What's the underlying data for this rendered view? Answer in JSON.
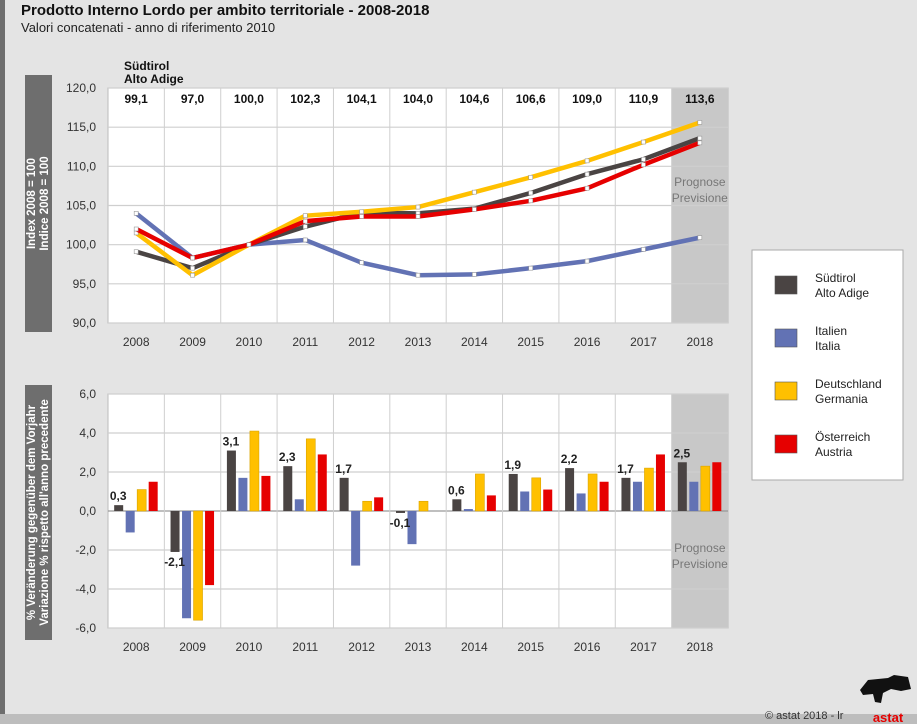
{
  "title": "Prodotto Interno Lordo per ambito territoriale - 2008-2018",
  "subtitle": "Valori concatenati - anno di riferimento 2010",
  "footer": {
    "copyright": "© astat 2018 - lr",
    "logo_text": "astat"
  },
  "colors": {
    "Südtirol": "#4a4443",
    "Italien": "#6272b4",
    "Deutschland": "#ffc000",
    "Österreich": "#e60000",
    "forecast_shade": "#c8c8c8"
  },
  "chart_data": [
    {
      "type": "line",
      "ylabel": [
        "Index 2008 = 100",
        "Indice 2008 = 100"
      ],
      "ylim": [
        90,
        120
      ],
      "yticks": [
        "90,0",
        "95,0",
        "100,0",
        "105,0",
        "110,0",
        "115,0",
        "120,0"
      ],
      "categories": [
        "2008",
        "2009",
        "2010",
        "2011",
        "2012",
        "2013",
        "2014",
        "2015",
        "2016",
        "2017",
        "2018"
      ],
      "table_header": [
        "Südtirol",
        "Alto Adige"
      ],
      "table_values": [
        "99,1",
        "97,0",
        "100,0",
        "102,3",
        "104,1",
        "104,0",
        "104,6",
        "106,6",
        "109,0",
        "110,9",
        "113,6"
      ],
      "forecast_label": [
        "Prognose",
        "Previsione"
      ],
      "series": [
        {
          "name": "Südtirol / Alto Adige",
          "key": "Südtirol",
          "values": [
            99.1,
            97.0,
            100.0,
            102.3,
            104.1,
            104.0,
            104.6,
            106.6,
            109.0,
            110.9,
            113.6
          ]
        },
        {
          "name": "Italien / Italia",
          "key": "Italien",
          "values": [
            104.0,
            98.3,
            100.0,
            100.6,
            97.7,
            96.1,
            96.2,
            97.0,
            97.9,
            99.4,
            100.9
          ]
        },
        {
          "name": "Deutschland / Germania",
          "key": "Deutschland",
          "values": [
            101.5,
            96.1,
            100.0,
            103.7,
            104.2,
            104.8,
            106.7,
            108.6,
            110.7,
            113.1,
            115.6
          ]
        },
        {
          "name": "Österreich / Austria",
          "key": "Österreich",
          "values": [
            102.0,
            98.3,
            100.0,
            103.0,
            103.6,
            103.6,
            104.5,
            105.6,
            107.2,
            110.2,
            113.0
          ]
        }
      ]
    },
    {
      "type": "bar",
      "ylabel": [
        "% Veränderung gegenüber dem Vorjahr",
        "Variazione % rispetto all'anno precedente"
      ],
      "ylim": [
        -6,
        6
      ],
      "yticks": [
        "-6,0",
        "-4,0",
        "-2,0",
        "0,0",
        "2,0",
        "4,0",
        "6,0"
      ],
      "categories": [
        "2008",
        "2009",
        "2010",
        "2011",
        "2012",
        "2013",
        "2014",
        "2015",
        "2016",
        "2017",
        "2018"
      ],
      "data_labels": [
        "0,3",
        "-2,1",
        "3,1",
        "2,3",
        "1,7",
        "-0,1",
        "0,6",
        "1,9",
        "2,2",
        "1,7",
        "2,5"
      ],
      "forecast_label": [
        "Prognose",
        "Previsione"
      ],
      "series": [
        {
          "name": "Südtirol / Alto Adige",
          "key": "Südtirol",
          "values": [
            0.3,
            -2.1,
            3.1,
            2.3,
            1.7,
            -0.1,
            0.6,
            1.9,
            2.2,
            1.7,
            2.5
          ]
        },
        {
          "name": "Italien / Italia",
          "key": "Italien",
          "values": [
            -1.1,
            -5.5,
            1.7,
            0.6,
            -2.8,
            -1.7,
            0.1,
            1.0,
            0.9,
            1.5,
            1.5
          ]
        },
        {
          "name": "Deutschland / Germania",
          "key": "Deutschland",
          "values": [
            1.1,
            -5.6,
            4.1,
            3.7,
            0.5,
            0.5,
            1.9,
            1.7,
            1.9,
            2.2,
            2.3
          ]
        },
        {
          "name": "Österreich / Austria",
          "key": "Österreich",
          "values": [
            1.5,
            -3.8,
            1.8,
            2.9,
            0.7,
            0.0,
            0.8,
            1.1,
            1.5,
            2.9,
            2.5
          ]
        }
      ]
    }
  ],
  "legend": [
    {
      "key": "Südtirol",
      "line1": "Südtirol",
      "line2": "Alto Adige"
    },
    {
      "key": "Italien",
      "line1": "Italien",
      "line2": "Italia"
    },
    {
      "key": "Deutschland",
      "line1": "Deutschland",
      "line2": "Germania"
    },
    {
      "key": "Österreich",
      "line1": "Österreich",
      "line2": "Austria"
    }
  ]
}
